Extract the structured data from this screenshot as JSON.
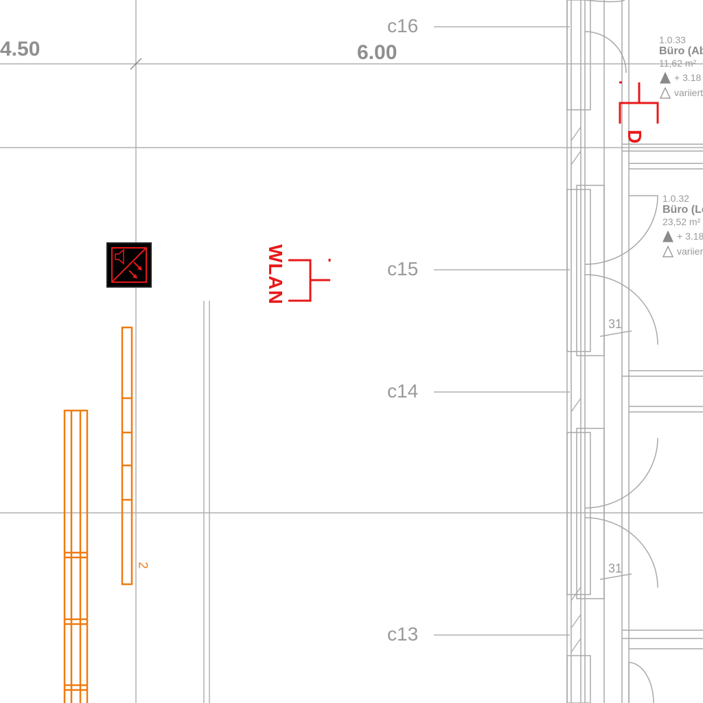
{
  "dimensions": {
    "left": "4.50",
    "middle": "6.00"
  },
  "axes": {
    "c16": "c16",
    "c15": "c15",
    "c14": "c14",
    "c13": "c13"
  },
  "rooms": [
    {
      "number": "1.0.33",
      "name": "Büro (Ab",
      "area": "11,62 m²",
      "level_top": "+ 3.18",
      "level_bottom": "variiert"
    },
    {
      "number": "1.0.32",
      "name": "Büro (Le",
      "area": "23,52 m²",
      "level_top": "+ 3.18",
      "level_bottom": "variiert"
    }
  ],
  "door_widths": [
    "31",
    "31"
  ],
  "symbols": {
    "wlan_label": "WLAN",
    "data_outlet_label": "D",
    "lighting_count": "2",
    "speaker_icon": "alarm-speaker-icon"
  },
  "colors": {
    "lines": "#a6a6a6",
    "electrical": "#e81818",
    "lighting": "#f07a10",
    "panel": "#000000"
  }
}
